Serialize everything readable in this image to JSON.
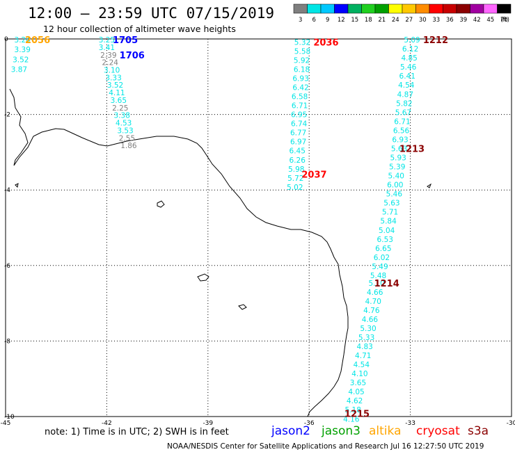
{
  "header": {
    "title": "12:00 – 23:59 UTC 07/15/2019",
    "subtitle": "12 hour collection of altimeter wave heights"
  },
  "colorbar": {
    "labels": [
      "3",
      "6",
      "9",
      "12",
      "15",
      "18",
      "21",
      "24",
      "27",
      "30",
      "33",
      "36",
      "39",
      "42",
      "45",
      "70"
    ],
    "unit": "(ft)",
    "colors": [
      "#7f7f7f",
      "#00e5e5",
      "#00c8ff",
      "#0000ff",
      "#00b060",
      "#20d020",
      "#00a000",
      "#ffff00",
      "#ffc800",
      "#ff8c00",
      "#ff0000",
      "#c80000",
      "#8b0000",
      "#a000a0",
      "#ff66ff",
      "#000000"
    ]
  },
  "axes": {
    "x_ticks": [
      "-45",
      "-42",
      "-39",
      "-36",
      "-33",
      "-30"
    ],
    "y_ticks": [
      "0",
      "-2",
      "-4",
      "-6",
      "-8",
      "-10"
    ]
  },
  "tracks": [
    {
      "labels": [
        {
          "text": "2056",
          "color": "#ffa500",
          "lon": -44.05,
          "lat": -0.02
        }
      ],
      "points": [
        {
          "v": "3.24",
          "c": "#00e5e5",
          "lon": -44.5,
          "lat": -0.02
        },
        {
          "v": "3.39",
          "c": "#00e5e5",
          "lon": -44.5,
          "lat": -0.28
        },
        {
          "v": "3.52",
          "c": "#00e5e5",
          "lon": -44.55,
          "lat": -0.54
        },
        {
          "v": "3.87",
          "c": "#00e5e5",
          "lon": -44.6,
          "lat": -0.8
        }
      ]
    },
    {
      "labels": [
        {
          "text": "1705",
          "color": "#0000ff",
          "lon": -41.45,
          "lat": -0.02
        },
        {
          "text": "1706",
          "color": "#0000ff",
          "lon": -41.25,
          "lat": -0.42
        }
      ],
      "points": [
        {
          "v": "3.25",
          "c": "#00e5e5",
          "lon": -42.0,
          "lat": -0.02
        },
        {
          "v": "3.41",
          "c": "#00e5e5",
          "lon": -42.0,
          "lat": -0.22
        },
        {
          "v": "2.39",
          "c": "#7f7f7f",
          "lon": -41.95,
          "lat": -0.42
        },
        {
          "v": "2.24",
          "c": "#7f7f7f",
          "lon": -41.9,
          "lat": -0.62
        },
        {
          "v": "3.10",
          "c": "#00e5e5",
          "lon": -41.85,
          "lat": -0.82
        },
        {
          "v": "3.33",
          "c": "#00e5e5",
          "lon": -41.8,
          "lat": -1.02
        },
        {
          "v": "3.52",
          "c": "#00e5e5",
          "lon": -41.75,
          "lat": -1.22
        },
        {
          "v": "4.11",
          "c": "#00e5e5",
          "lon": -41.7,
          "lat": -1.42
        },
        {
          "v": "3.65",
          "c": "#00e5e5",
          "lon": -41.65,
          "lat": -1.62
        },
        {
          "v": "2.25",
          "c": "#7f7f7f",
          "lon": -41.6,
          "lat": -1.82
        },
        {
          "v": "3.38",
          "c": "#00e5e5",
          "lon": -41.55,
          "lat": -2.02
        },
        {
          "v": "4.53",
          "c": "#00e5e5",
          "lon": -41.5,
          "lat": -2.22
        },
        {
          "v": "3.53",
          "c": "#00e5e5",
          "lon": -41.45,
          "lat": -2.42
        },
        {
          "v": "2.55",
          "c": "#7f7f7f",
          "lon": -41.4,
          "lat": -2.62
        },
        {
          "v": "1.86",
          "c": "#7f7f7f",
          "lon": -41.35,
          "lat": -2.82
        }
      ]
    },
    {
      "labels": [
        {
          "text": "2036",
          "color": "#ff0000",
          "lon": -35.5,
          "lat": -0.08
        },
        {
          "text": "2037",
          "color": "#ff0000",
          "lon": -35.85,
          "lat": -3.58
        }
      ],
      "points": [
        {
          "v": "5.32",
          "c": "#00e5e5",
          "lon": -36.2,
          "lat": -0.08
        },
        {
          "v": "5.58",
          "c": "#00e5e5",
          "lon": -36.2,
          "lat": -0.32
        },
        {
          "v": "5.92",
          "c": "#00e5e5",
          "lon": -36.22,
          "lat": -0.56
        },
        {
          "v": "6.18",
          "c": "#00e5e5",
          "lon": -36.22,
          "lat": -0.8
        },
        {
          "v": "6.93",
          "c": "#00e5e5",
          "lon": -36.25,
          "lat": -1.04
        },
        {
          "v": "6.42",
          "c": "#00e5e5",
          "lon": -36.25,
          "lat": -1.28
        },
        {
          "v": "6.58",
          "c": "#00e5e5",
          "lon": -36.28,
          "lat": -1.52
        },
        {
          "v": "6.71",
          "c": "#00e5e5",
          "lon": -36.28,
          "lat": -1.76
        },
        {
          "v": "6.95",
          "c": "#00e5e5",
          "lon": -36.3,
          "lat": -2.0
        },
        {
          "v": "6.74",
          "c": "#00e5e5",
          "lon": -36.3,
          "lat": -2.24
        },
        {
          "v": "6.77",
          "c": "#00e5e5",
          "lon": -36.32,
          "lat": -2.48
        },
        {
          "v": "6.97",
          "c": "#00e5e5",
          "lon": -36.32,
          "lat": -2.72
        },
        {
          "v": "6.45",
          "c": "#00e5e5",
          "lon": -36.35,
          "lat": -2.96
        },
        {
          "v": "6.26",
          "c": "#00e5e5",
          "lon": -36.35,
          "lat": -3.2
        },
        {
          "v": "5.98",
          "c": "#00e5e5",
          "lon": -36.38,
          "lat": -3.44
        },
        {
          "v": "5.72",
          "c": "#00e5e5",
          "lon": -36.4,
          "lat": -3.68
        },
        {
          "v": "5.02",
          "c": "#00e5e5",
          "lon": -36.42,
          "lat": -3.92
        }
      ]
    },
    {
      "labels": [
        {
          "text": "1212",
          "color": "#8b0000",
          "lon": -32.25,
          "lat": -0.02
        },
        {
          "text": "1213",
          "color": "#8b0000",
          "lon": -32.95,
          "lat": -2.9
        },
        {
          "text": "1214",
          "color": "#8b0000",
          "lon": -33.7,
          "lat": -6.46
        },
        {
          "text": "1215",
          "color": "#8b0000",
          "lon": -34.58,
          "lat": -9.92
        }
      ],
      "points": [
        {
          "v": "5.09",
          "c": "#00e5e5",
          "lon": -32.95,
          "lat": -0.02
        },
        {
          "v": "6.12",
          "c": "#00e5e5",
          "lon": -33.0,
          "lat": -0.26
        },
        {
          "v": "4.85",
          "c": "#00e5e5",
          "lon": -33.03,
          "lat": -0.5
        },
        {
          "v": "5.46",
          "c": "#00e5e5",
          "lon": -33.06,
          "lat": -0.74
        },
        {
          "v": "6.41",
          "c": "#00e5e5",
          "lon": -33.09,
          "lat": -0.98
        },
        {
          "v": "4.54",
          "c": "#00e5e5",
          "lon": -33.12,
          "lat": -1.22
        },
        {
          "v": "4.87",
          "c": "#00e5e5",
          "lon": -33.15,
          "lat": -1.46
        },
        {
          "v": "5.82",
          "c": "#00e5e5",
          "lon": -33.18,
          "lat": -1.7
        },
        {
          "v": "5.67",
          "c": "#00e5e5",
          "lon": -33.21,
          "lat": -1.94
        },
        {
          "v": "6.71",
          "c": "#00e5e5",
          "lon": -33.24,
          "lat": -2.18
        },
        {
          "v": "6.56",
          "c": "#00e5e5",
          "lon": -33.27,
          "lat": -2.42
        },
        {
          "v": "6.93",
          "c": "#00e5e5",
          "lon": -33.3,
          "lat": -2.66
        },
        {
          "v": "5.63",
          "c": "#00e5e5",
          "lon": -33.33,
          "lat": -2.9
        },
        {
          "v": "5.93",
          "c": "#00e5e5",
          "lon": -33.36,
          "lat": -3.14
        },
        {
          "v": "5.39",
          "c": "#00e5e5",
          "lon": -33.39,
          "lat": -3.38
        },
        {
          "v": "5.40",
          "c": "#00e5e5",
          "lon": -33.42,
          "lat": -3.62
        },
        {
          "v": "6.00",
          "c": "#00e5e5",
          "lon": -33.45,
          "lat": -3.86
        },
        {
          "v": "5.46",
          "c": "#00e5e5",
          "lon": -33.48,
          "lat": -4.1
        },
        {
          "v": "5.63",
          "c": "#00e5e5",
          "lon": -33.55,
          "lat": -4.34
        },
        {
          "v": "5.71",
          "c": "#00e5e5",
          "lon": -33.6,
          "lat": -4.58
        },
        {
          "v": "5.84",
          "c": "#00e5e5",
          "lon": -33.65,
          "lat": -4.82
        },
        {
          "v": "5.04",
          "c": "#00e5e5",
          "lon": -33.7,
          "lat": -5.06
        },
        {
          "v": "6.53",
          "c": "#00e5e5",
          "lon": -33.75,
          "lat": -5.3
        },
        {
          "v": "6.65",
          "c": "#00e5e5",
          "lon": -33.8,
          "lat": -5.54
        },
        {
          "v": "6.02",
          "c": "#00e5e5",
          "lon": -33.85,
          "lat": -5.78
        },
        {
          "v": "5.49",
          "c": "#00e5e5",
          "lon": -33.9,
          "lat": -6.02
        },
        {
          "v": "5.48",
          "c": "#00e5e5",
          "lon": -33.95,
          "lat": -6.26
        },
        {
          "v": "5.10",
          "c": "#00e5e5",
          "lon": -34.0,
          "lat": -6.46
        },
        {
          "v": "4.66",
          "c": "#00e5e5",
          "lon": -34.05,
          "lat": -6.7
        },
        {
          "v": "4.70",
          "c": "#00e5e5",
          "lon": -34.1,
          "lat": -6.94
        },
        {
          "v": "4.76",
          "c": "#00e5e5",
          "lon": -34.15,
          "lat": -7.18
        },
        {
          "v": "4.66",
          "c": "#00e5e5",
          "lon": -34.2,
          "lat": -7.42
        },
        {
          "v": "5.30",
          "c": "#00e5e5",
          "lon": -34.25,
          "lat": -7.66
        },
        {
          "v": "5.33",
          "c": "#00e5e5",
          "lon": -34.3,
          "lat": -7.9
        },
        {
          "v": "4.83",
          "c": "#00e5e5",
          "lon": -34.35,
          "lat": -8.14
        },
        {
          "v": "4.71",
          "c": "#00e5e5",
          "lon": -34.4,
          "lat": -8.38
        },
        {
          "v": "4.54",
          "c": "#00e5e5",
          "lon": -34.45,
          "lat": -8.62
        },
        {
          "v": "4.10",
          "c": "#00e5e5",
          "lon": -34.5,
          "lat": -8.86
        },
        {
          "v": "3.65",
          "c": "#00e5e5",
          "lon": -34.55,
          "lat": -9.1
        },
        {
          "v": "4.05",
          "c": "#00e5e5",
          "lon": -34.6,
          "lat": -9.34
        },
        {
          "v": "4.62",
          "c": "#00e5e5",
          "lon": -34.65,
          "lat": -9.58
        },
        {
          "v": "5.18",
          "c": "#00e5e5",
          "lon": -34.7,
          "lat": -9.82
        },
        {
          "v": "4.16",
          "c": "#00e5e5",
          "lon": -34.75,
          "lat": -10.06
        }
      ]
    }
  ],
  "footer": {
    "note": "note:  1) Time is in UTC;  2) SWH is in feet",
    "missions": [
      {
        "name": "jason2",
        "color": "#0000ff"
      },
      {
        "name": "jason3",
        "color": "#00a000"
      },
      {
        "name": "altika",
        "color": "#ffa500"
      },
      {
        "name": "cryosat",
        "color": "#ff0000"
      },
      {
        "name": "s3a",
        "color": "#8b0000"
      }
    ],
    "credit": "NOAA/NESDIS Center for Satellite Applications and Research     Jul 16 12:27:50 UTC 2019"
  }
}
